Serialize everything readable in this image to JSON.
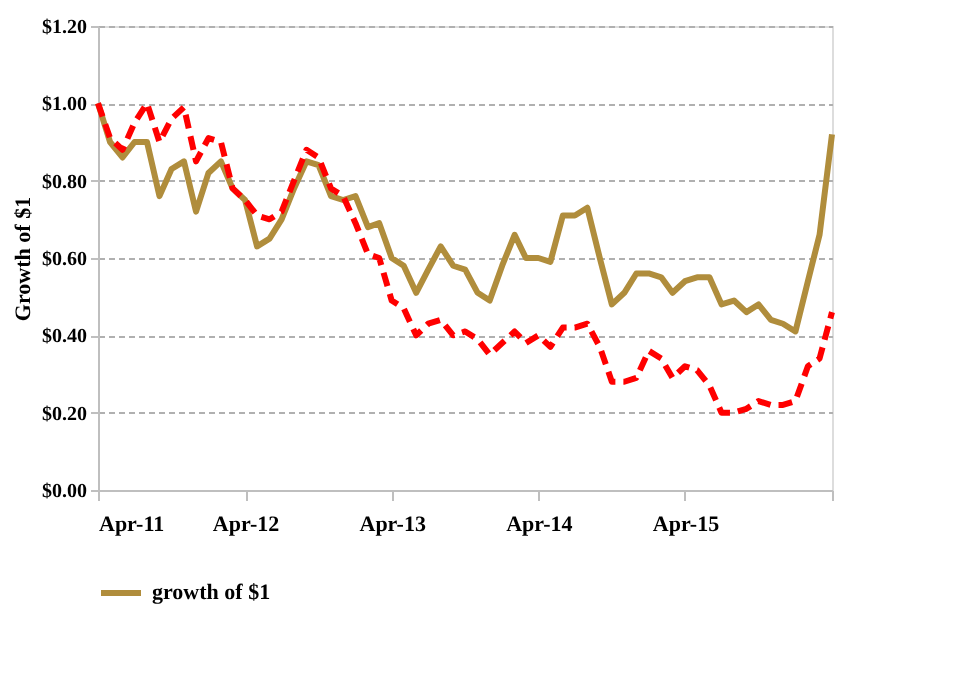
{
  "chart_data": {
    "type": "line",
    "ylabel": "Growth of $1",
    "x": [
      "2011-04",
      "2011-05",
      "2011-06",
      "2011-07",
      "2011-08",
      "2011-09",
      "2011-10",
      "2011-11",
      "2011-12",
      "2012-01",
      "2012-02",
      "2012-03",
      "2012-04",
      "2012-05",
      "2012-06",
      "2012-07",
      "2012-08",
      "2012-09",
      "2012-10",
      "2012-11",
      "2012-12",
      "2013-01",
      "2013-02",
      "2013-03",
      "2013-04",
      "2013-05",
      "2013-06",
      "2013-07",
      "2013-08",
      "2013-09",
      "2013-10",
      "2013-11",
      "2013-12",
      "2014-01",
      "2014-02",
      "2014-03",
      "2014-04",
      "2014-05",
      "2014-06",
      "2014-07",
      "2014-08",
      "2014-09",
      "2014-10",
      "2014-11",
      "2014-12",
      "2015-01",
      "2015-02",
      "2015-03",
      "2015-04",
      "2015-05",
      "2015-06",
      "2015-07",
      "2015-08",
      "2015-09",
      "2015-10",
      "2015-11",
      "2015-12",
      "2016-01",
      "2016-02",
      "2016-03",
      "2016-04"
    ],
    "series": [
      {
        "name": "growth of $1",
        "color": "#b08d3c",
        "line_style": "solid",
        "values": [
          1.0,
          0.9,
          0.86,
          0.9,
          0.9,
          0.76,
          0.83,
          0.85,
          0.72,
          0.82,
          0.85,
          0.78,
          0.75,
          0.63,
          0.65,
          0.7,
          0.78,
          0.85,
          0.84,
          0.76,
          0.75,
          0.76,
          0.68,
          0.69,
          0.6,
          0.58,
          0.51,
          0.57,
          0.63,
          0.58,
          0.57,
          0.51,
          0.49,
          0.58,
          0.66,
          0.6,
          0.6,
          0.59,
          0.71,
          0.71,
          0.73,
          0.6,
          0.48,
          0.51,
          0.56,
          0.56,
          0.55,
          0.51,
          0.54,
          0.55,
          0.55,
          0.48,
          0.49,
          0.46,
          0.48,
          0.44,
          0.43,
          0.41,
          0.54,
          0.66,
          0.92
        ]
      },
      {
        "color": "#ff0000",
        "line_style": "dashed",
        "values": [
          1.0,
          0.91,
          0.88,
          0.95,
          1.0,
          0.9,
          0.96,
          0.99,
          0.85,
          0.91,
          0.9,
          0.78,
          0.75,
          0.71,
          0.7,
          0.72,
          0.8,
          0.88,
          0.86,
          0.78,
          0.76,
          0.69,
          0.61,
          0.6,
          0.49,
          0.47,
          0.4,
          0.43,
          0.44,
          0.4,
          0.41,
          0.39,
          0.35,
          0.38,
          0.41,
          0.38,
          0.4,
          0.37,
          0.42,
          0.42,
          0.43,
          0.37,
          0.28,
          0.28,
          0.29,
          0.36,
          0.34,
          0.29,
          0.32,
          0.31,
          0.27,
          0.2,
          0.2,
          0.21,
          0.23,
          0.22,
          0.22,
          0.23,
          0.32,
          0.34,
          0.46
        ]
      }
    ],
    "xlim": [
      "2011-04",
      "2016-04"
    ],
    "xticks": [
      {
        "value": "2011-04",
        "label": "Apr-11"
      },
      {
        "value": "2012-04",
        "label": "Apr-12"
      },
      {
        "value": "2013-04",
        "label": "Apr-13"
      },
      {
        "value": "2014-04",
        "label": "Apr-14"
      },
      {
        "value": "2015-04",
        "label": "Apr-15"
      },
      {
        "value": "2016-04",
        "label": null
      }
    ],
    "ylim": [
      0,
      1.2
    ],
    "yticks": [
      {
        "value": 0,
        "label": "$0.00"
      },
      {
        "value": 0.2,
        "label": "$0.20"
      },
      {
        "value": 0.4,
        "label": "$0.40"
      },
      {
        "value": 0.6,
        "label": "$0.60"
      },
      {
        "value": 0.8,
        "label": "$0.80"
      },
      {
        "value": 1.0,
        "label": "$1.00"
      },
      {
        "value": 1.2,
        "label": "$1.20"
      }
    ],
    "grid": "y",
    "legend": "bottom"
  }
}
